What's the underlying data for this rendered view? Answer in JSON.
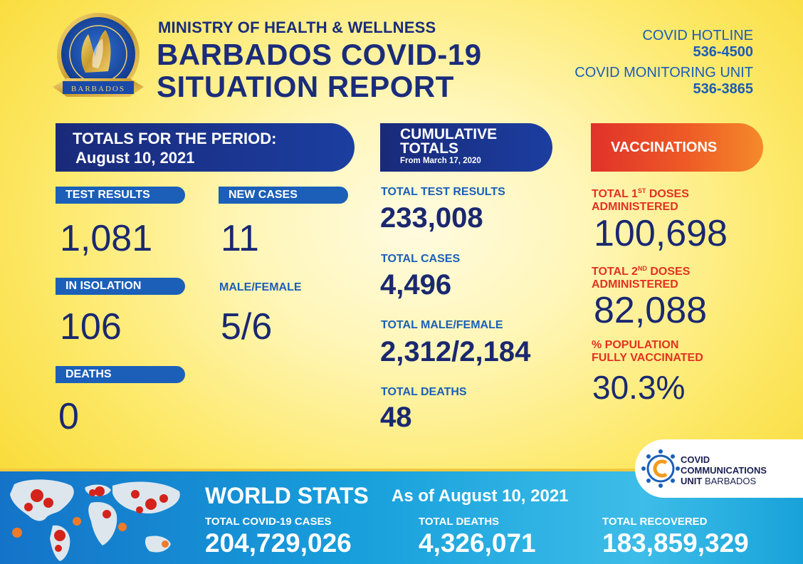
{
  "header": {
    "ministry": "MINISTRY OF HEALTH & WELLNESS",
    "title_line1": "BARBADOS COVID-19",
    "title_line2": "SITUATION REPORT",
    "seal_text": "BARBADOS"
  },
  "hotline": {
    "hotline_label": "COVID HOTLINE",
    "hotline_number": "536-4500",
    "monitoring_label": "COVID MONITORING UNIT",
    "monitoring_number": "536-3865"
  },
  "period": {
    "banner_line1": "TOTALS FOR THE PERIOD:",
    "banner_line2": "August 10, 2021",
    "test_results_label": "TEST RESULTS",
    "test_results_value": "1,081",
    "new_cases_label": "NEW CASES",
    "new_cases_value": "11",
    "isolation_label": "IN ISOLATION",
    "isolation_value": "106",
    "male_female_label": "MALE/FEMALE",
    "male_female_value": "5/6",
    "deaths_label": "DEATHS",
    "deaths_value": "0"
  },
  "cumulative": {
    "banner_line1": "CUMULATIVE",
    "banner_line2": "TOTALS",
    "banner_line3": "From March 17, 2020",
    "test_results_label": "TOTAL TEST RESULTS",
    "test_results_value": "233,008",
    "cases_label": "TOTAL CASES",
    "cases_value": "4,496",
    "male_female_label": "TOTAL MALE/FEMALE",
    "male_female_value": "2,312/2,184",
    "deaths_label": "TOTAL DEATHS",
    "deaths_value": "48"
  },
  "vaccinations": {
    "banner": "VACCINATIONS",
    "first_label_a": "TOTAL 1",
    "first_label_sup": "ST",
    "first_label_b": " DOSES",
    "first_label_c": "ADMINISTERED",
    "first_value": "100,698",
    "second_label_a": "TOTAL 2",
    "second_label_sup": "ND",
    "second_label_b": " DOSES",
    "second_label_c": "ADMINISTERED",
    "second_value": "82,088",
    "pct_label_a": "% POPULATION",
    "pct_label_b": "FULLY VACCINATED",
    "pct_value": "30.3%"
  },
  "world": {
    "title": "WORLD STATS",
    "as_of": "As of August 10, 2021",
    "cases_label": "TOTAL COVID-19 CASES",
    "cases_value": "204,729,026",
    "deaths_label": "TOTAL DEATHS",
    "deaths_value": "4,326,071",
    "recovered_label": "TOTAL RECOVERED",
    "recovered_value": "183,859,329"
  },
  "ccu": {
    "line1": "COVID",
    "line2": "COMMUNICATIONS",
    "line3": "UNIT",
    "line3_b": "BARBADOS"
  },
  "colors": {
    "navy": "#1a2c7a",
    "blue": "#1b5fb8",
    "red": "#e23222",
    "orange": "#f48a2a",
    "yellow": "#fde96a"
  }
}
